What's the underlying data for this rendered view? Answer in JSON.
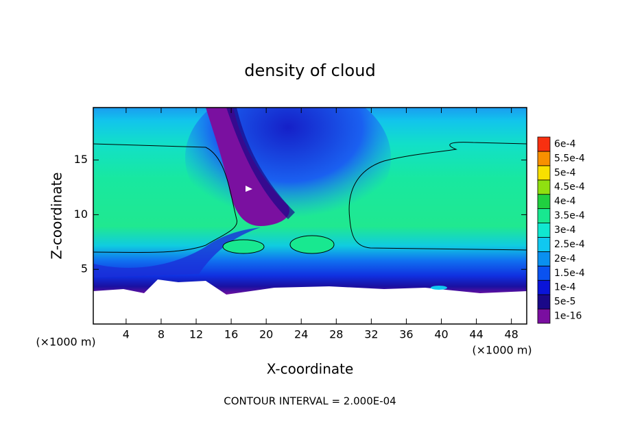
{
  "chart_data": {
    "type": "contour",
    "title": "density of cloud",
    "xlabel": "X-coordinate",
    "ylabel": "Z-coordinate",
    "x_unit": "(×1000 m)",
    "footer": "CONTOUR INTERVAL = 2.000E-04",
    "xlim": [
      0.25,
      49.75
    ],
    "ylim": [
      0,
      19.8
    ],
    "xticks": [
      4,
      8,
      12,
      16,
      20,
      24,
      28,
      32,
      36,
      40,
      44,
      48
    ],
    "yticks": [
      5,
      10,
      15
    ],
    "levels": [
      {
        "value": 1e-16,
        "label": "1e-16"
      },
      {
        "value": 5e-05,
        "label": "5e-5"
      },
      {
        "value": 0.0001,
        "label": "1e-4"
      },
      {
        "value": 0.00015,
        "label": "1.5e-4"
      },
      {
        "value": 0.0002,
        "label": "2e-4"
      },
      {
        "value": 0.00025,
        "label": "2.5e-4"
      },
      {
        "value": 0.0003,
        "label": "3e-4"
      },
      {
        "value": 0.00035,
        "label": "3.5e-4"
      },
      {
        "value": 0.0004,
        "label": "4e-4"
      },
      {
        "value": 0.00045,
        "label": "4.5e-4"
      },
      {
        "value": 0.0005,
        "label": "5e-4"
      },
      {
        "value": 0.00055,
        "label": "5.5e-4"
      },
      {
        "value": 0.0006,
        "label": "6e-4"
      }
    ],
    "level_colors": [
      "#7a0ea0",
      "#1a0888",
      "#0a14d8",
      "#0a52f0",
      "#0a90f0",
      "#10c8f0",
      "#10e8d0",
      "#18e890",
      "#20d040",
      "#90e010",
      "#f8e000",
      "#f89000",
      "#f83010"
    ]
  }
}
